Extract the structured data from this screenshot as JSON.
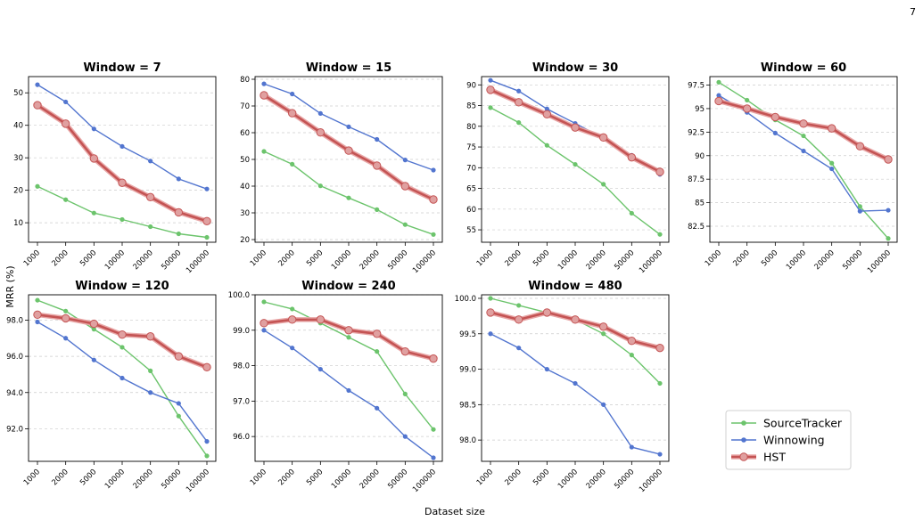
{
  "page_number": "7",
  "figure": {
    "ylabel": "MRR (%)",
    "xlabel": "Dataset size",
    "legend": {
      "placement": "lower-right",
      "entries": [
        "SourceTracker",
        "Winnowing",
        "HST"
      ]
    }
  },
  "chart_data": {
    "type": "line",
    "categories": [
      "1000",
      "2000",
      "5000",
      "10000",
      "20000",
      "50000",
      "100000"
    ],
    "series_colors": {
      "SourceTracker": "#6cc46c",
      "Winnowing": "#5275cf",
      "HST": "#c45454"
    },
    "grid": "y-dashed",
    "panels": [
      {
        "title": "Window = 7",
        "ylim": [
          4,
          55
        ],
        "yticks": [
          10,
          20,
          30,
          40,
          50
        ],
        "series": [
          {
            "name": "SourceTracker",
            "values": [
              21.2,
              17.1,
              13.0,
              11.0,
              8.8,
              6.6,
              5.5
            ]
          },
          {
            "name": "Winnowing",
            "values": [
              52.5,
              47.2,
              38.9,
              33.5,
              29.0,
              23.5,
              20.4
            ]
          },
          {
            "name": "HST",
            "values": [
              46.2,
              40.5,
              29.8,
              22.3,
              17.9,
              13.2,
              10.5
            ]
          }
        ]
      },
      {
        "title": "Window = 15",
        "ylim": [
          19,
          81
        ],
        "yticks": [
          20,
          30,
          40,
          50,
          60,
          70,
          80
        ],
        "series": [
          {
            "name": "SourceTracker",
            "values": [
              53.0,
              48.2,
              40.1,
              35.6,
              31.2,
              25.6,
              21.9
            ]
          },
          {
            "name": "Winnowing",
            "values": [
              78.3,
              74.5,
              67.2,
              62.2,
              57.5,
              49.8,
              46.0
            ]
          },
          {
            "name": "HST",
            "values": [
              74.0,
              67.3,
              60.1,
              53.3,
              47.7,
              40.0,
              35.0
            ]
          }
        ]
      },
      {
        "title": "Window = 30",
        "ylim": [
          52,
          92
        ],
        "yticks": [
          55,
          60,
          65,
          70,
          75,
          80,
          85,
          90
        ],
        "series": [
          {
            "name": "SourceTracker",
            "values": [
              84.5,
              80.9,
              75.4,
              70.8,
              66.0,
              59.0,
              53.9
            ]
          },
          {
            "name": "Winnowing",
            "values": [
              91.1,
              88.5,
              84.2,
              80.7,
              77.1,
              73.0,
              68.4
            ]
          },
          {
            "name": "HST",
            "values": [
              88.8,
              85.8,
              82.9,
              79.7,
              77.3,
              72.5,
              69.0
            ]
          }
        ]
      },
      {
        "title": "Window = 60",
        "ylim": [
          80.8,
          98.4
        ],
        "yticks": [
          82.5,
          85.0,
          87.5,
          90.0,
          92.5,
          95.0,
          97.5
        ],
        "series": [
          {
            "name": "SourceTracker",
            "values": [
              97.8,
              95.9,
              93.8,
              92.1,
              89.2,
              84.6,
              81.2
            ]
          },
          {
            "name": "Winnowing",
            "values": [
              96.4,
              94.6,
              92.4,
              90.5,
              88.6,
              84.1,
              84.2
            ]
          },
          {
            "name": "HST",
            "values": [
              95.8,
              95.0,
              94.1,
              93.4,
              92.9,
              91.0,
              89.6
            ]
          }
        ]
      },
      {
        "title": "Window = 120",
        "ylim": [
          90.2,
          99.4
        ],
        "yticks": [
          92,
          94,
          96,
          98
        ],
        "series": [
          {
            "name": "SourceTracker",
            "values": [
              99.1,
              98.5,
              97.5,
              96.5,
              95.2,
              92.7,
              90.5
            ]
          },
          {
            "name": "Winnowing",
            "values": [
              97.9,
              97.0,
              95.8,
              94.8,
              94.0,
              93.4,
              91.3
            ]
          },
          {
            "name": "HST",
            "values": [
              98.3,
              98.1,
              97.8,
              97.2,
              97.1,
              96.0,
              95.4
            ]
          }
        ]
      },
      {
        "title": "Window = 240",
        "ylim": [
          95.3,
          100.0
        ],
        "yticks": [
          96,
          97,
          98,
          99,
          100
        ],
        "series": [
          {
            "name": "SourceTracker",
            "values": [
              99.8,
              99.6,
              99.2,
              98.8,
              98.4,
              97.2,
              96.2
            ]
          },
          {
            "name": "Winnowing",
            "values": [
              99.0,
              98.5,
              97.9,
              97.3,
              96.8,
              96.0,
              95.4
            ]
          },
          {
            "name": "HST",
            "values": [
              99.2,
              99.3,
              99.3,
              99.0,
              98.9,
              98.4,
              98.2
            ]
          }
        ]
      },
      {
        "title": "Window = 480",
        "ylim": [
          97.7,
          100.05
        ],
        "yticks": [
          98.0,
          98.5,
          99.0,
          99.5,
          100.0
        ],
        "series": [
          {
            "name": "SourceTracker",
            "values": [
              100.0,
              99.9,
              99.8,
              99.7,
              99.5,
              99.2,
              98.8
            ]
          },
          {
            "name": "Winnowing",
            "values": [
              99.5,
              99.3,
              99.0,
              98.8,
              98.5,
              97.9,
              97.8
            ]
          },
          {
            "name": "HST",
            "values": [
              99.8,
              99.7,
              99.8,
              99.7,
              99.6,
              99.4,
              99.3
            ]
          }
        ]
      }
    ]
  }
}
